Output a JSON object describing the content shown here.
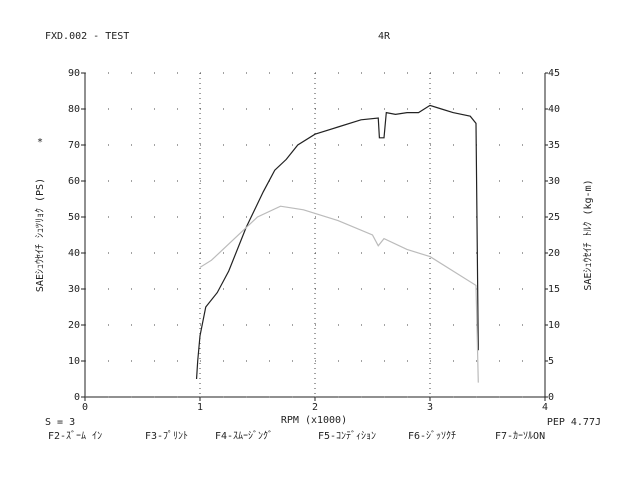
{
  "chart_data": {
    "type": "line",
    "title": "FXD.002 - TEST",
    "subtitle": "4R",
    "ylabel": "SAEｼｭｳｾｲﾁ ｼｭﾂﾘｮｸ (PS)",
    "ylabel_mark": "*",
    "y2label": "SAEｼｭｳｾｲﾁ ﾄﾙｸ (kg-m)",
    "xlabel": "RPM (x1000)",
    "annotations": [
      "S = 3",
      "PEP 4.77J"
    ],
    "function_keys": [
      "F2-ｽﾞｰﾑ ｲﾝ",
      "F3-ﾌﾟﾘﾝﾄ",
      "F4-ｽﾑｰｼﾞﾝｸﾞ",
      "F5-ｺﾝﾃﾞｨｼｮﾝ",
      "F6-ｼﾞｯｿｸﾁ",
      "F7-ｶｰｿﾙON"
    ],
    "xlim": [
      0,
      4
    ],
    "xticks": [
      0,
      1,
      2,
      3,
      4
    ],
    "ylim": [
      0,
      90
    ],
    "yticks": [
      0,
      10,
      20,
      30,
      40,
      50,
      60,
      70,
      80,
      90
    ],
    "y2lim": [
      0,
      45
    ],
    "y2ticks": [
      0,
      5,
      10,
      15,
      20,
      25,
      30,
      35,
      40,
      45
    ],
    "grid": true,
    "series": [
      {
        "name": "PS",
        "color": "#222222",
        "x": [
          0.97,
          0.98,
          1.0,
          1.05,
          1.15,
          1.25,
          1.4,
          1.55,
          1.65,
          1.75,
          1.85,
          2.0,
          2.2,
          2.4,
          2.55,
          2.56,
          2.6,
          2.62,
          2.7,
          2.8,
          2.9,
          3.0,
          3.1,
          3.2,
          3.35,
          3.4,
          3.42
        ],
        "values": [
          5,
          10,
          17,
          25,
          29,
          35,
          47,
          57,
          63,
          66,
          70,
          73,
          75,
          77,
          77.5,
          72,
          72,
          79,
          78.5,
          79,
          79,
          81,
          80,
          79,
          78,
          76,
          13
        ]
      },
      {
        "name": "kg-m",
        "color": "#bbbbbb",
        "axis": "y2",
        "x": [
          1.0,
          1.1,
          1.3,
          1.5,
          1.7,
          1.9,
          2.2,
          2.5,
          2.55,
          2.6,
          2.8,
          3.0,
          3.2,
          3.4,
          3.42
        ],
        "values": [
          18,
          19,
          22,
          25,
          26.5,
          26,
          24.5,
          22.5,
          21,
          22,
          20.5,
          19.5,
          17.5,
          15.5,
          2
        ]
      }
    ]
  }
}
